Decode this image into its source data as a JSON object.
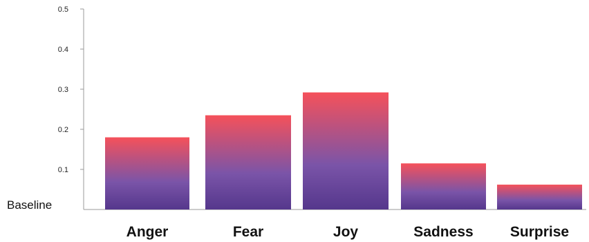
{
  "chart_data": {
    "type": "bar",
    "categories": [
      "Anger",
      "Fear",
      "Joy",
      "Sadness",
      "Surprise"
    ],
    "values": [
      0.18,
      0.235,
      0.292,
      0.115,
      0.062
    ],
    "yticks": [
      "0.1",
      "0.2",
      "0.3",
      "0.4",
      "0.5"
    ],
    "ylim": [
      0,
      0.5
    ],
    "baseline_label": "Baseline",
    "title": "",
    "xlabel": "",
    "ylabel": "",
    "grid": false,
    "colors": {
      "bar_top": "#f5515a",
      "bar_middle": "#7a54a8",
      "bar_bottom": "#55378c",
      "axis": "#999999"
    }
  }
}
